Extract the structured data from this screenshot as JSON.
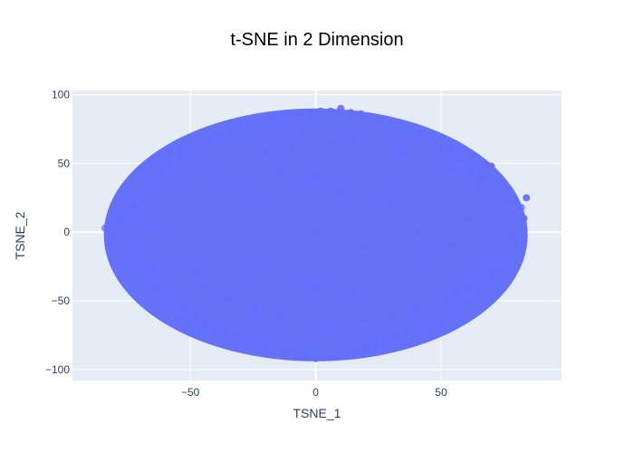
{
  "chart_data": {
    "type": "scatter",
    "title": "t-SNE in 2 Dimension",
    "xlabel": "TSNE_1",
    "ylabel": "TSNE_2",
    "xlim": [
      -97,
      98
    ],
    "ylim": [
      -108,
      103
    ],
    "xticks": [
      -50,
      0,
      50
    ],
    "yticks": [
      -100,
      -50,
      0,
      50,
      100
    ],
    "xtick_labels": [
      "−50",
      "0",
      "50"
    ],
    "ytick_labels": [
      "−100",
      "−50",
      "0",
      "50",
      "100"
    ],
    "grid": true,
    "legend": "none",
    "colors": {
      "marker": "#636efa",
      "plot_bg": "#e5ecf6",
      "grid": "#ffffff",
      "text": "#2a3f5f",
      "title": "#000000"
    },
    "cluster": {
      "center": [
        0,
        -2
      ],
      "x_range": [
        -84,
        85
      ],
      "y_range": [
        -94,
        90
      ]
    },
    "points": [
      [
        -84,
        3
      ],
      [
        -80,
        -2
      ],
      [
        -78,
        6
      ],
      [
        -76,
        -12
      ],
      [
        -75,
        9
      ],
      [
        -73,
        -22
      ],
      [
        -72,
        18
      ],
      [
        -70,
        -28
      ],
      [
        -69,
        28
      ],
      [
        -67,
        -35
      ],
      [
        -66,
        38
      ],
      [
        -64,
        -40
      ],
      [
        -62,
        44
      ],
      [
        -60,
        -45
      ],
      [
        -58,
        50
      ],
      [
        -56,
        -52
      ],
      [
        -54,
        55
      ],
      [
        -52,
        -56
      ],
      [
        -50,
        58
      ],
      [
        -48,
        -60
      ],
      [
        -46,
        62
      ],
      [
        -44,
        -65
      ],
      [
        -42,
        66
      ],
      [
        -40,
        -68
      ],
      [
        -38,
        70
      ],
      [
        -36,
        -72
      ],
      [
        -34,
        72
      ],
      [
        -32,
        -75
      ],
      [
        -30,
        76
      ],
      [
        -28,
        -78
      ],
      [
        -26,
        78
      ],
      [
        -24,
        -80
      ],
      [
        -22,
        80
      ],
      [
        -20,
        -82
      ],
      [
        -18,
        82
      ],
      [
        -16,
        -85
      ],
      [
        -14,
        84
      ],
      [
        -12,
        -86
      ],
      [
        -10,
        85
      ],
      [
        -8,
        -88
      ],
      [
        -6,
        86
      ],
      [
        -4,
        -90
      ],
      [
        -2,
        86
      ],
      [
        0,
        -92
      ],
      [
        2,
        88
      ],
      [
        4,
        -91
      ],
      [
        6,
        88
      ],
      [
        8,
        -90
      ],
      [
        10,
        90
      ],
      [
        12,
        -88
      ],
      [
        14,
        87
      ],
      [
        16,
        -86
      ],
      [
        18,
        86
      ],
      [
        20,
        -84
      ],
      [
        22,
        84
      ],
      [
        24,
        -82
      ],
      [
        26,
        82
      ],
      [
        28,
        -80
      ],
      [
        30,
        80
      ],
      [
        32,
        -76
      ],
      [
        34,
        78
      ],
      [
        36,
        -72
      ],
      [
        38,
        76
      ],
      [
        40,
        -68
      ],
      [
        42,
        72
      ],
      [
        44,
        -64
      ],
      [
        46,
        68
      ],
      [
        48,
        -58
      ],
      [
        50,
        62
      ],
      [
        52,
        -52
      ],
      [
        54,
        58
      ],
      [
        56,
        -45
      ],
      [
        58,
        52
      ],
      [
        60,
        -40
      ],
      [
        62,
        46
      ],
      [
        64,
        -35
      ],
      [
        66,
        40
      ],
      [
        68,
        -28
      ],
      [
        70,
        34
      ],
      [
        72,
        -22
      ],
      [
        74,
        28
      ],
      [
        76,
        -15
      ],
      [
        78,
        22
      ],
      [
        80,
        -8
      ],
      [
        82,
        18
      ],
      [
        83,
        10
      ],
      [
        84,
        25
      ],
      [
        76,
        5
      ],
      [
        78,
        -2
      ],
      [
        72,
        10
      ],
      [
        -82,
        -8
      ],
      [
        -80,
        10
      ],
      [
        -77,
        -5
      ],
      [
        -74,
        15
      ],
      [
        -71,
        -18
      ],
      [
        -68,
        22
      ],
      [
        -65,
        -25
      ],
      [
        -62,
        30
      ],
      [
        -59,
        -32
      ],
      [
        -56,
        36
      ],
      [
        -50,
        40
      ],
      [
        -45,
        -40
      ],
      [
        -40,
        45
      ],
      [
        -35,
        -48
      ],
      [
        -30,
        52
      ],
      [
        -25,
        -55
      ],
      [
        -20,
        58
      ],
      [
        -15,
        -60
      ],
      [
        -10,
        62
      ],
      [
        -5,
        -64
      ],
      [
        5,
        64
      ],
      [
        10,
        -66
      ],
      [
        15,
        66
      ],
      [
        20,
        -64
      ],
      [
        25,
        62
      ],
      [
        30,
        -60
      ],
      [
        35,
        58
      ],
      [
        40,
        -55
      ],
      [
        45,
        52
      ],
      [
        50,
        -48
      ],
      [
        55,
        45
      ],
      [
        60,
        -40
      ],
      [
        65,
        35
      ],
      [
        70,
        -30
      ],
      [
        74,
        20
      ],
      [
        70,
        48
      ],
      [
        66,
        52
      ],
      [
        62,
        56
      ],
      [
        58,
        60
      ],
      [
        54,
        64
      ],
      [
        -70,
        46
      ],
      [
        -66,
        50
      ],
      [
        -62,
        54
      ],
      [
        -58,
        58
      ],
      [
        -54,
        60
      ],
      [
        -60,
        -58
      ],
      [
        -55,
        -62
      ],
      [
        -50,
        -66
      ],
      [
        -45,
        -70
      ],
      [
        -40,
        -74
      ],
      [
        40,
        -74
      ],
      [
        45,
        -70
      ],
      [
        50,
        -66
      ],
      [
        55,
        -60
      ],
      [
        60,
        -52
      ],
      [
        65,
        -44
      ],
      [
        70,
        -36
      ],
      [
        74,
        -28
      ],
      [
        64,
        -48
      ],
      [
        68,
        -40
      ],
      [
        0,
        0
      ],
      [
        -20,
        10
      ],
      [
        20,
        -10
      ],
      [
        -30,
        -20
      ],
      [
        30,
        20
      ],
      [
        -10,
        -30
      ],
      [
        10,
        30
      ],
      [
        -40,
        0
      ],
      [
        40,
        0
      ],
      [
        0,
        40
      ],
      [
        0,
        -40
      ],
      [
        -25,
        25
      ],
      [
        25,
        -25
      ],
      [
        -25,
        -25
      ],
      [
        25,
        25
      ],
      [
        -55,
        10
      ],
      [
        55,
        -10
      ],
      [
        -5,
        70
      ],
      [
        5,
        -72
      ],
      [
        -48,
        -30
      ],
      [
        48,
        30
      ],
      [
        -36,
        36
      ],
      [
        36,
        -36
      ],
      [
        -60,
        -10
      ],
      [
        60,
        10
      ],
      [
        -15,
        45
      ],
      [
        15,
        -45
      ],
      [
        -45,
        15
      ],
      [
        45,
        -15
      ],
      [
        -65,
        5
      ]
    ]
  }
}
